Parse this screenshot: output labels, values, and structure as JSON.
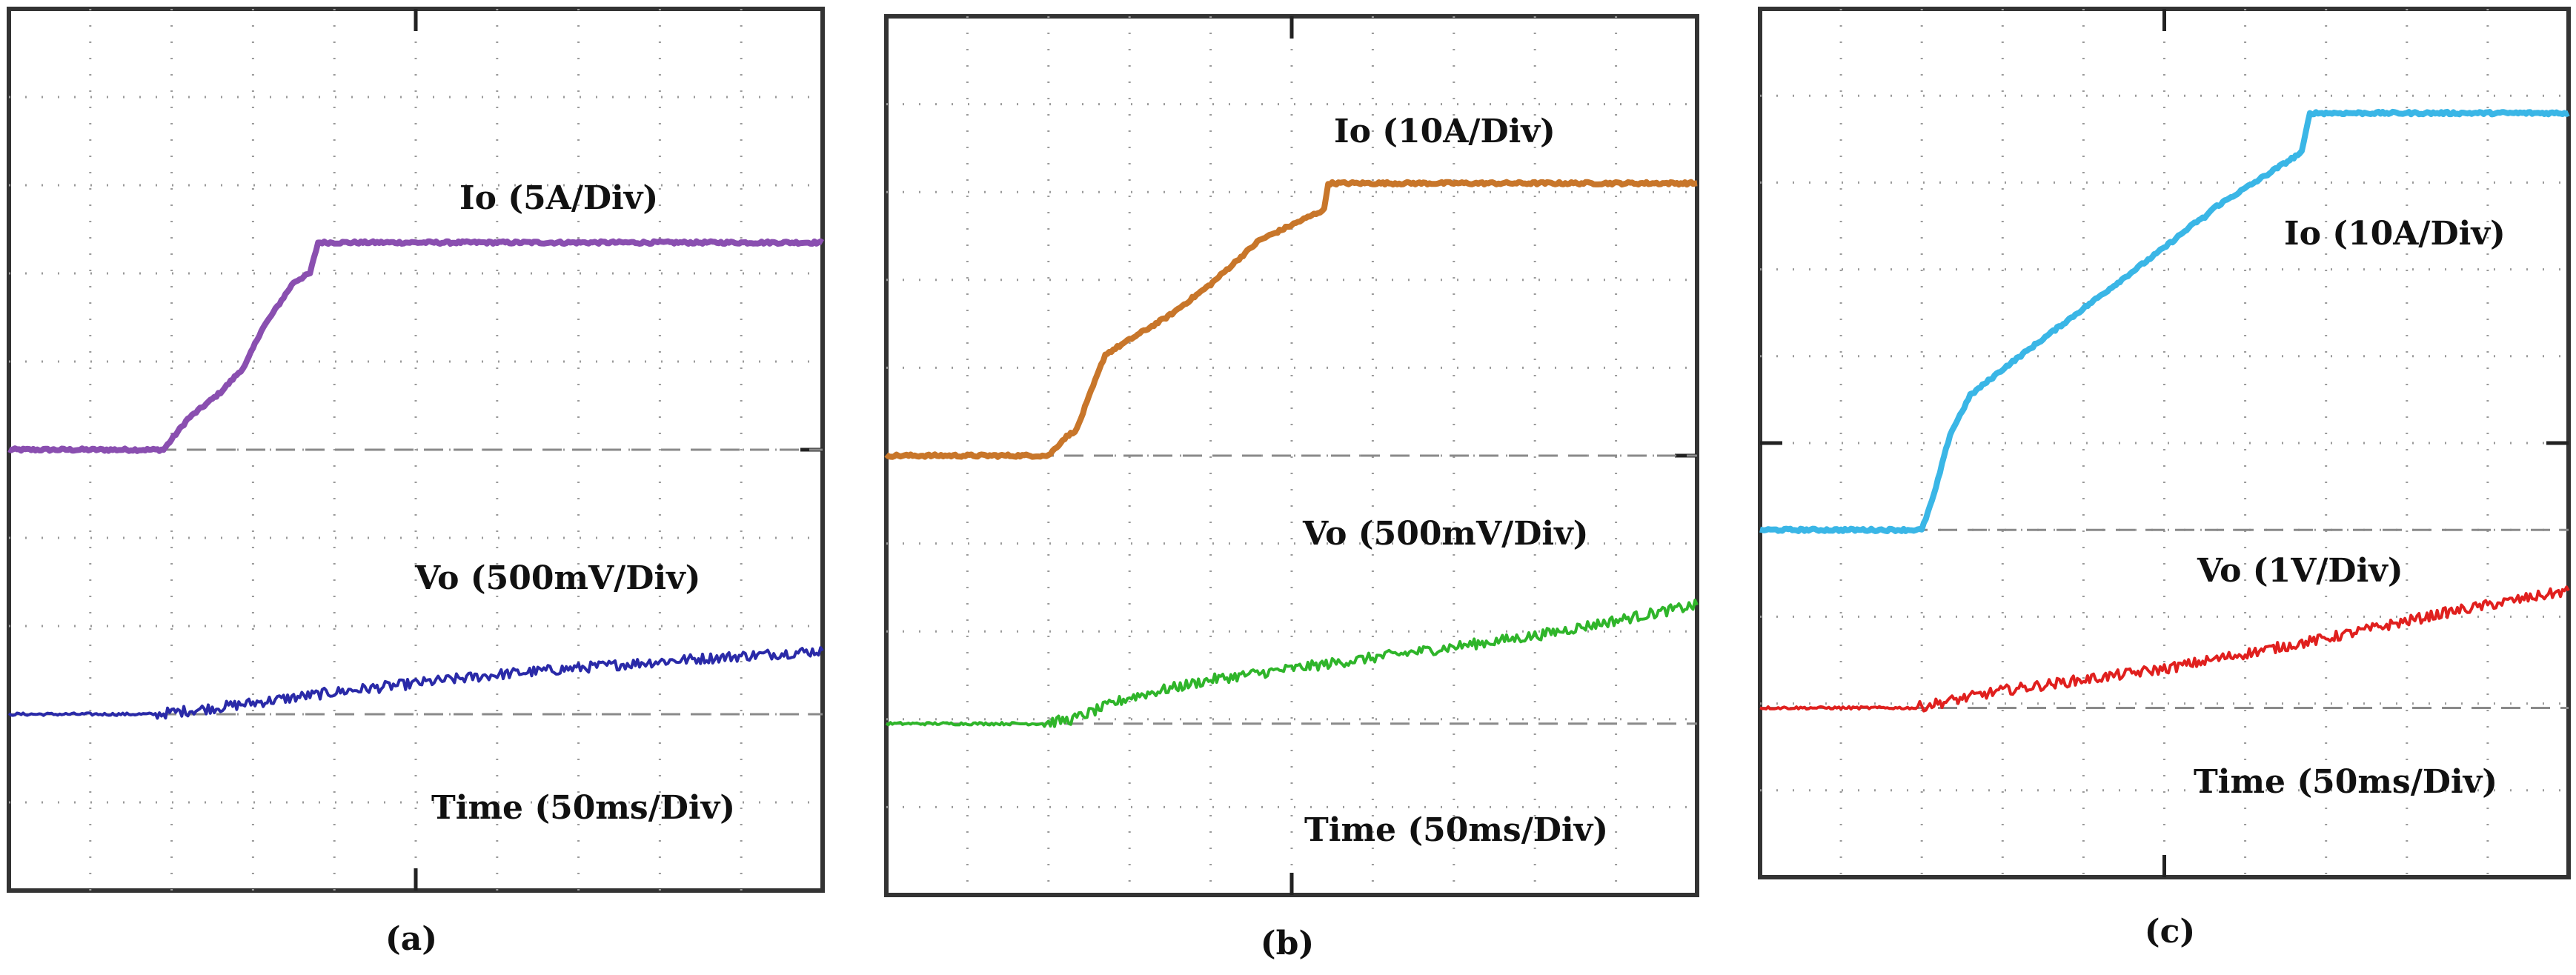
{
  "figure": {
    "panels": [
      {
        "id": "a",
        "caption": "(a)",
        "io_label": "Io (5A/Div)",
        "vo_label": "Vo (500mV/Div)",
        "time_label": "Time (50ms/Div)",
        "io_color": "#8a4fb0",
        "vo_color": "#2a2aa8"
      },
      {
        "id": "b",
        "caption": "(b)",
        "io_label": "Io (10A/Div)",
        "vo_label": "Vo (500mV/Div)",
        "time_label": "Time (50ms/Div)",
        "io_color": "#c8762a",
        "vo_color": "#2fb52a"
      },
      {
        "id": "c",
        "caption": "(c)",
        "io_label": "Io (10A/Div)",
        "vo_label": "Vo (1V/Div)",
        "time_label": "Time (50ms/Div)",
        "io_color": "#3ab6e6",
        "vo_color": "#e0201e"
      }
    ]
  },
  "chart_data": [
    {
      "type": "line",
      "title": "(a)",
      "xlabel": "Time (50ms/Div)",
      "xlim": [
        0,
        10
      ],
      "ylim": [
        0,
        10
      ],
      "x_unit": "divisions",
      "y_unit": "divisions",
      "series": [
        {
          "name": "Io (5A/Div)",
          "color": "#8a4fb0",
          "x": [
            0,
            1.9,
            2.2,
            2.6,
            2.9,
            3.1,
            3.5,
            3.7,
            3.8,
            4.0,
            10
          ],
          "y": [
            5.0,
            5.0,
            5.35,
            5.65,
            5.95,
            6.35,
            6.9,
            7.0,
            7.35,
            7.35,
            7.35
          ]
        },
        {
          "name": "Vo (500mV/Div)",
          "color": "#2a2aa8",
          "x": [
            0,
            1.8,
            2.6,
            4.0,
            6.0,
            8.0,
            10
          ],
          "y": [
            2.0,
            2.0,
            2.08,
            2.25,
            2.45,
            2.6,
            2.72
          ]
        }
      ],
      "references": [
        {
          "name": "Io ground",
          "y": 5.0
        },
        {
          "name": "Vo ground",
          "y": 2.0
        }
      ]
    },
    {
      "type": "line",
      "title": "(b)",
      "xlabel": "Time (50ms/Div)",
      "xlim": [
        0,
        10
      ],
      "ylim": [
        0,
        10
      ],
      "x_unit": "divisions",
      "y_unit": "divisions",
      "series": [
        {
          "name": "Io (10A/Div)",
          "color": "#c8762a",
          "x": [
            0,
            2.0,
            2.2,
            2.35,
            2.45,
            2.7,
            3.5,
            4.0,
            4.6,
            5.4,
            5.45,
            5.55,
            10
          ],
          "y": [
            5.0,
            5.0,
            5.2,
            5.3,
            5.55,
            6.15,
            6.6,
            6.95,
            7.45,
            7.8,
            8.1,
            8.1,
            8.1
          ]
        },
        {
          "name": "Vo (500mV/Div)",
          "color": "#2fb52a",
          "x": [
            0,
            1.9,
            2.3,
            3.0,
            4.0,
            6.0,
            8.0,
            10
          ],
          "y": [
            1.95,
            1.95,
            2.0,
            2.25,
            2.45,
            2.7,
            2.95,
            3.3
          ]
        }
      ],
      "references": [
        {
          "name": "Io ground",
          "y": 5.0
        },
        {
          "name": "Vo ground",
          "y": 1.95
        }
      ]
    },
    {
      "type": "line",
      "title": "(c)",
      "xlabel": "Time (50ms/Div)",
      "xlim": [
        0,
        10
      ],
      "ylim": [
        0,
        10
      ],
      "x_unit": "divisions",
      "y_unit": "divisions",
      "series": [
        {
          "name": "Io (10A/Div)",
          "color": "#3ab6e6",
          "x": [
            0,
            2.0,
            2.15,
            2.35,
            2.6,
            3.0,
            4.0,
            5.0,
            5.4,
            5.5,
            5.6,
            6.2,
            6.7,
            6.8,
            10
          ],
          "y": [
            4.0,
            4.0,
            4.4,
            5.1,
            5.55,
            5.85,
            6.55,
            7.25,
            7.55,
            7.6,
            7.7,
            8.05,
            8.35,
            8.8,
            8.8
          ]
        },
        {
          "name": "Vo (1V/Div)",
          "color": "#e0201e",
          "x": [
            0,
            1.9,
            3.0,
            5.0,
            7.0,
            8.5,
            10
          ],
          "y": [
            1.95,
            1.95,
            2.15,
            2.4,
            2.75,
            3.05,
            3.3
          ]
        }
      ],
      "references": [
        {
          "name": "Io ground",
          "y": 4.0
        },
        {
          "name": "Vo ground",
          "y": 1.95
        }
      ]
    }
  ]
}
